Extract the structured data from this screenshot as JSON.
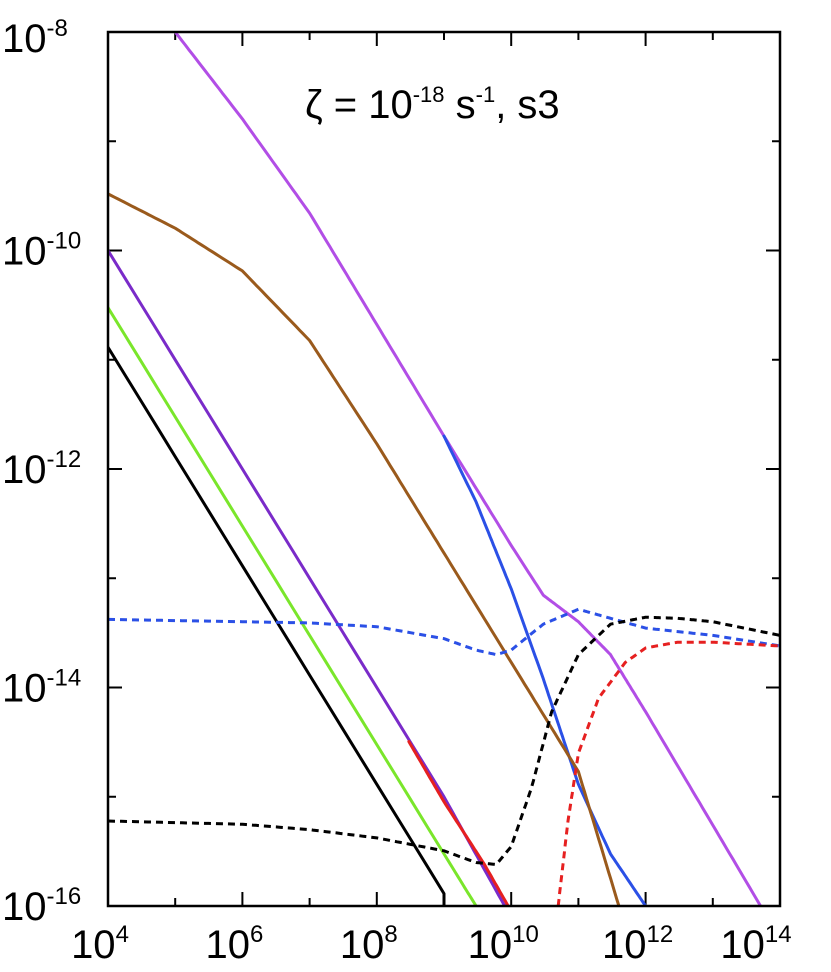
{
  "chart_data": {
    "type": "line",
    "title": "",
    "xlabel": "",
    "ylabel": "",
    "xscale": "log",
    "yscale": "log",
    "xlim": [
      10000.0,
      100000000000000.0
    ],
    "ylim": [
      1e-16,
      1e-08
    ],
    "grid": false,
    "x_ticks": [
      {
        "base": "10",
        "exp": "4"
      },
      {
        "base": "10",
        "exp": "6"
      },
      {
        "base": "10",
        "exp": "8"
      },
      {
        "base": "10",
        "exp": "10"
      },
      {
        "base": "10",
        "exp": "12"
      },
      {
        "base": "10",
        "exp": "14"
      }
    ],
    "y_ticks": [
      {
        "base": "10",
        "exp": "-16"
      },
      {
        "base": "10",
        "exp": "-14"
      },
      {
        "base": "10",
        "exp": "-12"
      },
      {
        "base": "10",
        "exp": "-10"
      },
      {
        "base": "10",
        "exp": "-8"
      }
    ],
    "annotation": {
      "pre": "ζ = 10",
      "exp1": "-18",
      "mid": " s",
      "exp2": "-1",
      "post": ", s3"
    },
    "series": [
      {
        "color": "#b24ee6",
        "dash": false,
        "x": [
          100000.0,
          1000000.0,
          10000000.0,
          100000000.0,
          1000000000.0,
          10000000000.0,
          30000000000.0,
          100000000000.0,
          300000000000.0,
          1000000000000.0,
          10000000000000.0,
          100000000000000.0
        ],
        "y": [
          1e-08,
          1.6e-09,
          2.2e-10,
          2.1e-11,
          2e-12,
          2e-13,
          7e-14,
          4e-14,
          2e-14,
          6e-15,
          5.5e-16,
          5e-17
        ]
      },
      {
        "color": "#2b50e6",
        "dash": false,
        "x": [
          1000000000.0,
          3000000000.0,
          10000000000.0,
          30000000000.0,
          100000000000.0,
          300000000000.0,
          1000000000000.0
        ],
        "y": [
          2e-12,
          5e-13,
          8e-14,
          1.2e-14,
          1.3e-15,
          3e-16,
          1e-16
        ]
      },
      {
        "color": "#9a5a1c",
        "dash": false,
        "x": [
          10000.0,
          100000.0,
          1000000.0,
          10000000.0,
          100000000.0,
          1000000000.0,
          10000000000.0,
          100000000000.0,
          400000000000.0
        ],
        "y": [
          3.3e-10,
          1.6e-10,
          6.5e-11,
          1.5e-11,
          1.7e-12,
          1.7e-13,
          1.7e-14,
          1.7e-15,
          1e-16
        ]
      },
      {
        "color": "#7a2bc9",
        "dash": false,
        "x": [
          10000.0,
          1000000000.0,
          8000000000.0
        ],
        "y": [
          1e-10,
          1e-15,
          1e-16
        ]
      },
      {
        "color": "#e62020",
        "dash": false,
        "x": [
          300000000.0,
          1000000000.0,
          4000000000.0,
          9000000000.0
        ],
        "y": [
          3.2e-15,
          9e-16,
          2.4e-16,
          1e-16
        ]
      },
      {
        "color": "#7ae62b",
        "dash": false,
        "x": [
          10000.0,
          1000000000.0,
          3000000000.0
        ],
        "y": [
          3e-11,
          3e-16,
          1e-16
        ]
      },
      {
        "color": "#000000",
        "dash": false,
        "x": [
          10000.0,
          1000000000.0,
          1000000000.0
        ],
        "y": [
          1.3e-11,
          1.3e-16,
          1e-16
        ]
      },
      {
        "color": "#2b50e6",
        "dash": true,
        "x": [
          10000.0,
          1000000.0,
          10000000.0,
          100000000.0,
          1000000000.0,
          3000000000.0,
          6000000000.0,
          10000000000.0,
          30000000000.0,
          100000000000.0,
          300000000000.0,
          1000000000000.0,
          10000000000000.0,
          100000000000000.0
        ],
        "y": [
          4.2e-14,
          4e-14,
          3.9e-14,
          3.6e-14,
          2.8e-14,
          2.2e-14,
          2e-14,
          2.2e-14,
          3.8e-14,
          5.2e-14,
          4.3e-14,
          3.5e-14,
          3e-14,
          2.4e-14
        ]
      },
      {
        "color": "#000000",
        "dash": true,
        "x": [
          10000.0,
          1000000.0,
          10000000.0,
          100000000.0,
          1000000000.0,
          3000000000.0,
          6000000000.0,
          10000000000.0,
          20000000000.0,
          40000000000.0,
          100000000000.0,
          300000000000.0,
          1000000000000.0,
          3000000000000.0,
          10000000000000.0,
          100000000000000.0
        ],
        "y": [
          6e-16,
          5.6e-16,
          5e-16,
          4.2e-16,
          3.2e-16,
          2.5e-16,
          2.4e-16,
          3.5e-16,
          1.2e-15,
          6e-15,
          2e-14,
          3.8e-14,
          4.4e-14,
          4.3e-14,
          4e-14,
          3e-14
        ]
      },
      {
        "color": "#e62020",
        "dash": true,
        "x": [
          50000000000.0,
          70000000000.0,
          100000000000.0,
          200000000000.0,
          500000000000.0,
          1000000000000.0,
          3000000000000.0,
          10000000000000.0,
          30000000000000.0,
          100000000000000.0
        ],
        "y": [
          1e-16,
          6e-16,
          2.5e-15,
          8e-15,
          1.7e-14,
          2.3e-14,
          2.6e-14,
          2.6e-14,
          2.5e-14,
          2.4e-14
        ]
      }
    ]
  }
}
